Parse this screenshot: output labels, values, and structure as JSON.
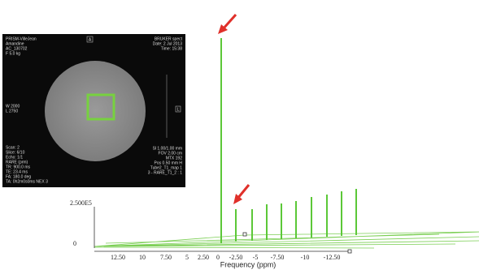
{
  "inset": {
    "top_left": [
      "PRISM-VilleJean",
      "Amandine",
      "AC_130702",
      "F 5.0 kg"
    ],
    "top_marker": "A",
    "top_right": [
      "BRUKER spect",
      "Date: 2 Jul 2013",
      "Time: 15:38"
    ],
    "window": [
      "W 2000",
      "L 2750"
    ],
    "right_marker": "L",
    "bottom_left": [
      "Scan: 2",
      "Slice: 6/10",
      "Echo: 1/1",
      "RARE (prm)",
      "TR: 900.0 ms",
      "TE: 23.4 ms",
      "FA: 180.0 deg",
      "TA: 0h2m0s0ms NEX 3"
    ],
    "bottom_right": [
      "Sl 1.00/1.00 mm",
      "FOV 2.00 cm",
      "MTX 192",
      "Pos 0.50 mm H",
      "Tube2_T1_map 1",
      "3 - RARE_T1_2 : 1"
    ]
  },
  "plot": {
    "y_labels": [
      "2.500E5",
      "0"
    ],
    "x_ticks": [
      "12.50",
      "10",
      "7.50",
      "5",
      "2.50",
      "0",
      "-2.50",
      "-5",
      "-7.50",
      "-10",
      "-12.50"
    ],
    "x_label": "Frequency (ppm)"
  }
}
